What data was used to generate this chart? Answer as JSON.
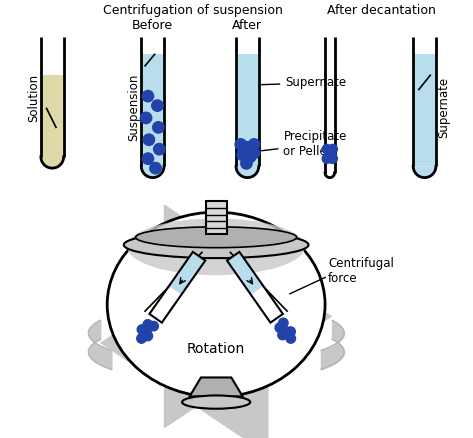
{
  "bg_color": "#ffffff",
  "tube_outline": "#000000",
  "solution_fill": "#ddd9a8",
  "liquid_fill": "#b8dded",
  "pellet_color": "#2244aa",
  "gray_light": "#c8c8c8",
  "gray_mid": "#b0b0b0",
  "gray_dark": "#909090",
  "rotation_arrow": "#c0c0c0",
  "text_color": "#000000",
  "labels": {
    "solution": "Solution",
    "suspension": "Suspension",
    "centrifugation": "Centrifugation of suspension",
    "before": "Before",
    "after": "After",
    "supernate": "Supernate",
    "precipitate": "Precipitate\nor Pellet",
    "after_decantation": "After decantation",
    "supernate2": "Supernate",
    "rotation": "Rotation",
    "centrifugal": "Centrifugal\nforce"
  }
}
